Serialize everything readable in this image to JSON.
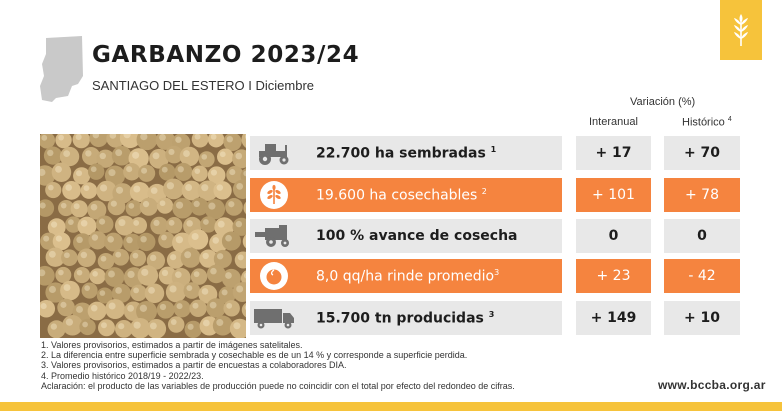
{
  "header": {
    "title": "GARBANZO 2023/24",
    "subtitle": "SANTIAGO DEL ESTERO I Diciembre"
  },
  "columns": {
    "variation_title": "Variación (%)",
    "interanual": "Interanual",
    "historico": "Histórico",
    "historico_note": "4"
  },
  "rows": [
    {
      "icon": "tractor-icon",
      "style": "gray",
      "label": "22.700 ha sembradas",
      "note": "1",
      "interanual": "+ 17",
      "historico": "+ 70"
    },
    {
      "icon": "plant-icon",
      "style": "orange",
      "label": "19.600 ha cosechables",
      "note": "2",
      "interanual": "+ 101",
      "historico": "+ 78"
    },
    {
      "icon": "harvester-icon",
      "style": "gray",
      "label": "100 % avance de cosecha",
      "note": "",
      "interanual": "0",
      "historico": "0"
    },
    {
      "icon": "grain-icon",
      "style": "orange",
      "label": "8,0 qq/ha rinde promedio",
      "note": "3",
      "interanual": "+ 23",
      "historico": "- 42"
    },
    {
      "icon": "truck-icon",
      "style": "gray",
      "label": "15.700 tn producidas",
      "note": "3",
      "interanual": "+ 149",
      "historico": "+ 10"
    }
  ],
  "notes": [
    "1. Valores provisorios, estimados a partir de imágenes satelitales.",
    "2. La diferencia entre superficie sembrada y cosechable es de un 14 % y corresponde a superficie perdida.",
    "3. Valores provisorios, estimados a partir de encuestas a colaboradores DIA.",
    "4. Promedio histórico 2018/19 - 2022/23.",
    "Aclaración: el producto de las variables de producción puede no coincidir con el total por efecto del redondeo de cifras."
  ],
  "footer": {
    "url": "www.bccba.org.ar"
  },
  "colors": {
    "orange": "#f5843f",
    "gray": "#e8e8e8",
    "yellow": "#f6c33b"
  }
}
